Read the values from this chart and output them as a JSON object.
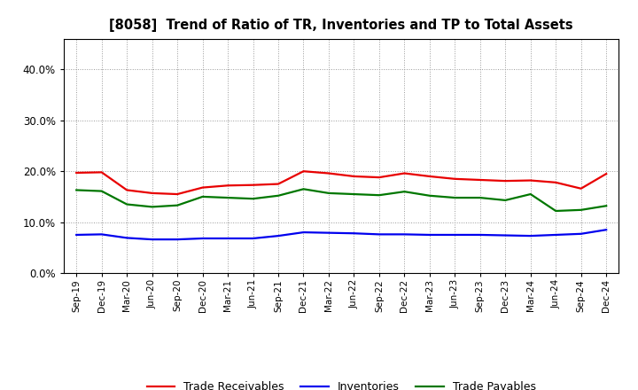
{
  "title": "[8058]  Trend of Ratio of TR, Inventories and TP to Total Assets",
  "x_labels": [
    "Sep-19",
    "Dec-19",
    "Mar-20",
    "Jun-20",
    "Sep-20",
    "Dec-20",
    "Mar-21",
    "Jun-21",
    "Sep-21",
    "Dec-21",
    "Mar-22",
    "Jun-22",
    "Sep-22",
    "Dec-22",
    "Mar-23",
    "Jun-23",
    "Sep-23",
    "Dec-23",
    "Mar-24",
    "Jun-24",
    "Sep-24",
    "Dec-24"
  ],
  "trade_receivables": [
    0.197,
    0.198,
    0.163,
    0.157,
    0.155,
    0.168,
    0.172,
    0.173,
    0.175,
    0.2,
    0.196,
    0.19,
    0.188,
    0.196,
    0.19,
    0.185,
    0.183,
    0.181,
    0.182,
    0.178,
    0.166,
    0.195
  ],
  "inventories": [
    0.075,
    0.076,
    0.069,
    0.066,
    0.066,
    0.068,
    0.068,
    0.068,
    0.073,
    0.08,
    0.079,
    0.078,
    0.076,
    0.076,
    0.075,
    0.075,
    0.075,
    0.074,
    0.073,
    0.075,
    0.077,
    0.085
  ],
  "trade_payables": [
    0.163,
    0.161,
    0.135,
    0.13,
    0.133,
    0.15,
    0.148,
    0.146,
    0.152,
    0.165,
    0.157,
    0.155,
    0.153,
    0.16,
    0.152,
    0.148,
    0.148,
    0.143,
    0.155,
    0.122,
    0.124,
    0.132
  ],
  "ylim": [
    0.0,
    0.46
  ],
  "yticks": [
    0.0,
    0.1,
    0.2,
    0.3,
    0.4
  ],
  "color_tr": "#e80000",
  "color_inv": "#0000ee",
  "color_tp": "#007700",
  "line_width": 1.6,
  "bg_color": "#ffffff",
  "grid_color": "#999999",
  "legend_labels": [
    "Trade Receivables",
    "Inventories",
    "Trade Payables"
  ]
}
